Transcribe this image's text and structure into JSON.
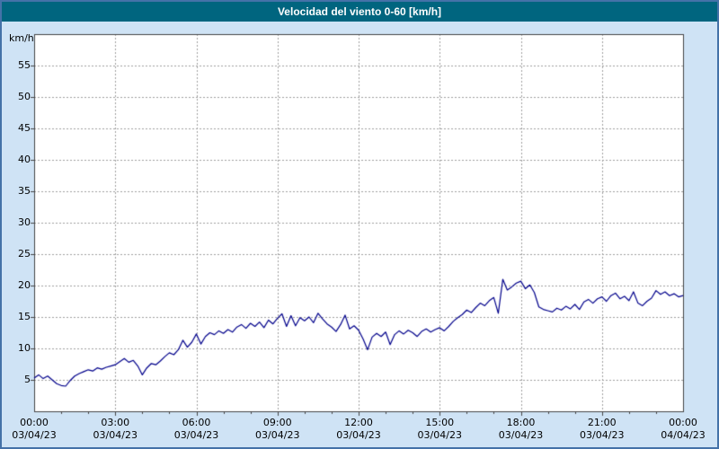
{
  "header": {
    "title": "Velocidad del viento 0-60 [km/h]"
  },
  "colors": {
    "frame_border": "#4472a8",
    "page_bg": "#cfe3f5",
    "header_bg": "#00657f",
    "header_text": "#ffffff",
    "plot_bg": "#ffffff",
    "grid": "#a0a0a0",
    "axis": "#444444",
    "line": "#00008b"
  },
  "chart_data": {
    "type": "line",
    "title": "Velocidad del viento 0-60 [km/h]",
    "ylabel": "km/h",
    "xlabel": "",
    "ylim": [
      0,
      60
    ],
    "ytick_step": 5,
    "ytick_labels": [
      "5",
      "10",
      "15",
      "20",
      "25",
      "30",
      "35",
      "40",
      "45",
      "50",
      "55"
    ],
    "x_range_hours": 24,
    "x_tick_labels": [
      "00:00",
      "03:00",
      "06:00",
      "09:00",
      "12:00",
      "15:00",
      "18:00",
      "21:00",
      "00:00"
    ],
    "x_date_labels": [
      "03/04/23",
      "03/04/23",
      "03/04/23",
      "03/04/23",
      "03/04/23",
      "03/04/23",
      "03/04/23",
      "03/04/23",
      "04/04/23"
    ],
    "grid": true,
    "legend_position": "none",
    "series": [
      {
        "name": "Velocidad del viento",
        "color": "#00008b",
        "interval_minutes": 10,
        "values": [
          5.3,
          5.8,
          5.2,
          5.6,
          5.0,
          4.4,
          4.1,
          4.0,
          4.9,
          5.6,
          6.0,
          6.3,
          6.6,
          6.4,
          6.9,
          6.7,
          7.0,
          7.2,
          7.4,
          7.9,
          8.4,
          7.8,
          8.1,
          7.2,
          5.8,
          6.9,
          7.6,
          7.4,
          8.0,
          8.7,
          9.3,
          9.0,
          9.8,
          11.3,
          10.2,
          11.0,
          12.3,
          10.7,
          11.9,
          12.5,
          12.2,
          12.8,
          12.4,
          13.0,
          12.6,
          13.4,
          13.8,
          13.2,
          14.0,
          13.5,
          14.2,
          13.3,
          14.5,
          13.9,
          14.8,
          15.5,
          13.5,
          15.2,
          13.6,
          14.9,
          14.4,
          15.0,
          14.1,
          15.6,
          14.7,
          13.9,
          13.4,
          12.7,
          13.8,
          15.3,
          13.1,
          13.6,
          12.9,
          11.5,
          9.8,
          11.8,
          12.4,
          11.9,
          12.6,
          10.6,
          12.2,
          12.8,
          12.3,
          12.9,
          12.5,
          11.9,
          12.7,
          13.1,
          12.6,
          13.0,
          13.3,
          12.8,
          13.5,
          14.3,
          14.9,
          15.4,
          16.1,
          15.7,
          16.5,
          17.2,
          16.8,
          17.6,
          18.1,
          15.6,
          21.0,
          19.3,
          19.8,
          20.4,
          20.7,
          19.5,
          20.1,
          18.9,
          16.6,
          16.2,
          16.0,
          15.8,
          16.4,
          16.1,
          16.7,
          16.3,
          17.0,
          16.2,
          17.4,
          17.8,
          17.2,
          17.9,
          18.2,
          17.5,
          18.4,
          18.8,
          17.9,
          18.3,
          17.6,
          19.0,
          17.2,
          16.8,
          17.5,
          18.0,
          19.2,
          18.6,
          19.0,
          18.4,
          18.7,
          18.2,
          18.4
        ]
      }
    ]
  }
}
